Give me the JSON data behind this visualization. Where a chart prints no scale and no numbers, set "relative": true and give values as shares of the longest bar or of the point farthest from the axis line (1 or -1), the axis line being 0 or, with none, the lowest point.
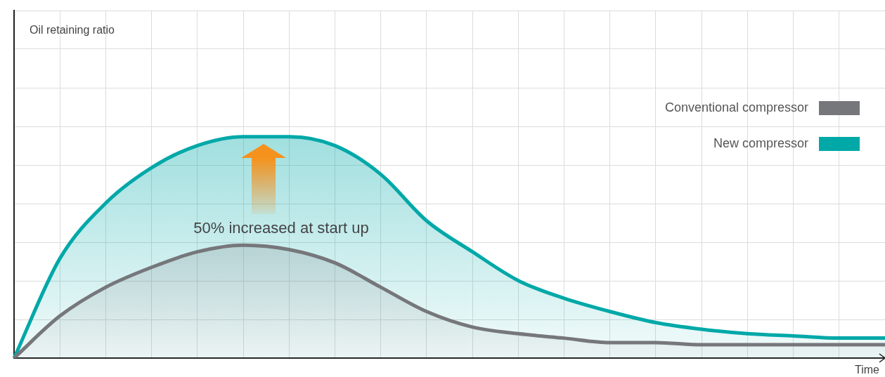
{
  "chart_data": {
    "type": "area",
    "relative": true,
    "xlabel": "Time",
    "grid": true,
    "legend": "top right",
    "categories": [
      null,
      null,
      null,
      null,
      null,
      null,
      null,
      null,
      null,
      null,
      null,
      null,
      null,
      null,
      null,
      null,
      null,
      null,
      null,
      null
    ],
    "series": [
      {
        "name": "Conventional compressor",
        "color": "#76777b",
        "values": [
          0,
          0.19,
          0.32,
          0.41,
          0.48,
          0.51,
          0.49,
          0.43,
          0.32,
          0.21,
          0.14,
          0.11,
          0.09,
          0.07,
          0.07,
          0.06,
          0.06,
          0.06,
          0.06,
          0.06
        ]
      },
      {
        "name": "New compressor",
        "color": "#00a8a8",
        "values": [
          0,
          0.45,
          0.7,
          0.86,
          0.96,
          1,
          1,
          0.96,
          0.83,
          0.62,
          0.48,
          0.35,
          0.27,
          0.21,
          0.16,
          0.13,
          0.11,
          0.1,
          0.09,
          0.09
        ]
      }
    ],
    "annotations": [
      "Oil retaining ratio",
      "50% increased at start up"
    ]
  }
}
